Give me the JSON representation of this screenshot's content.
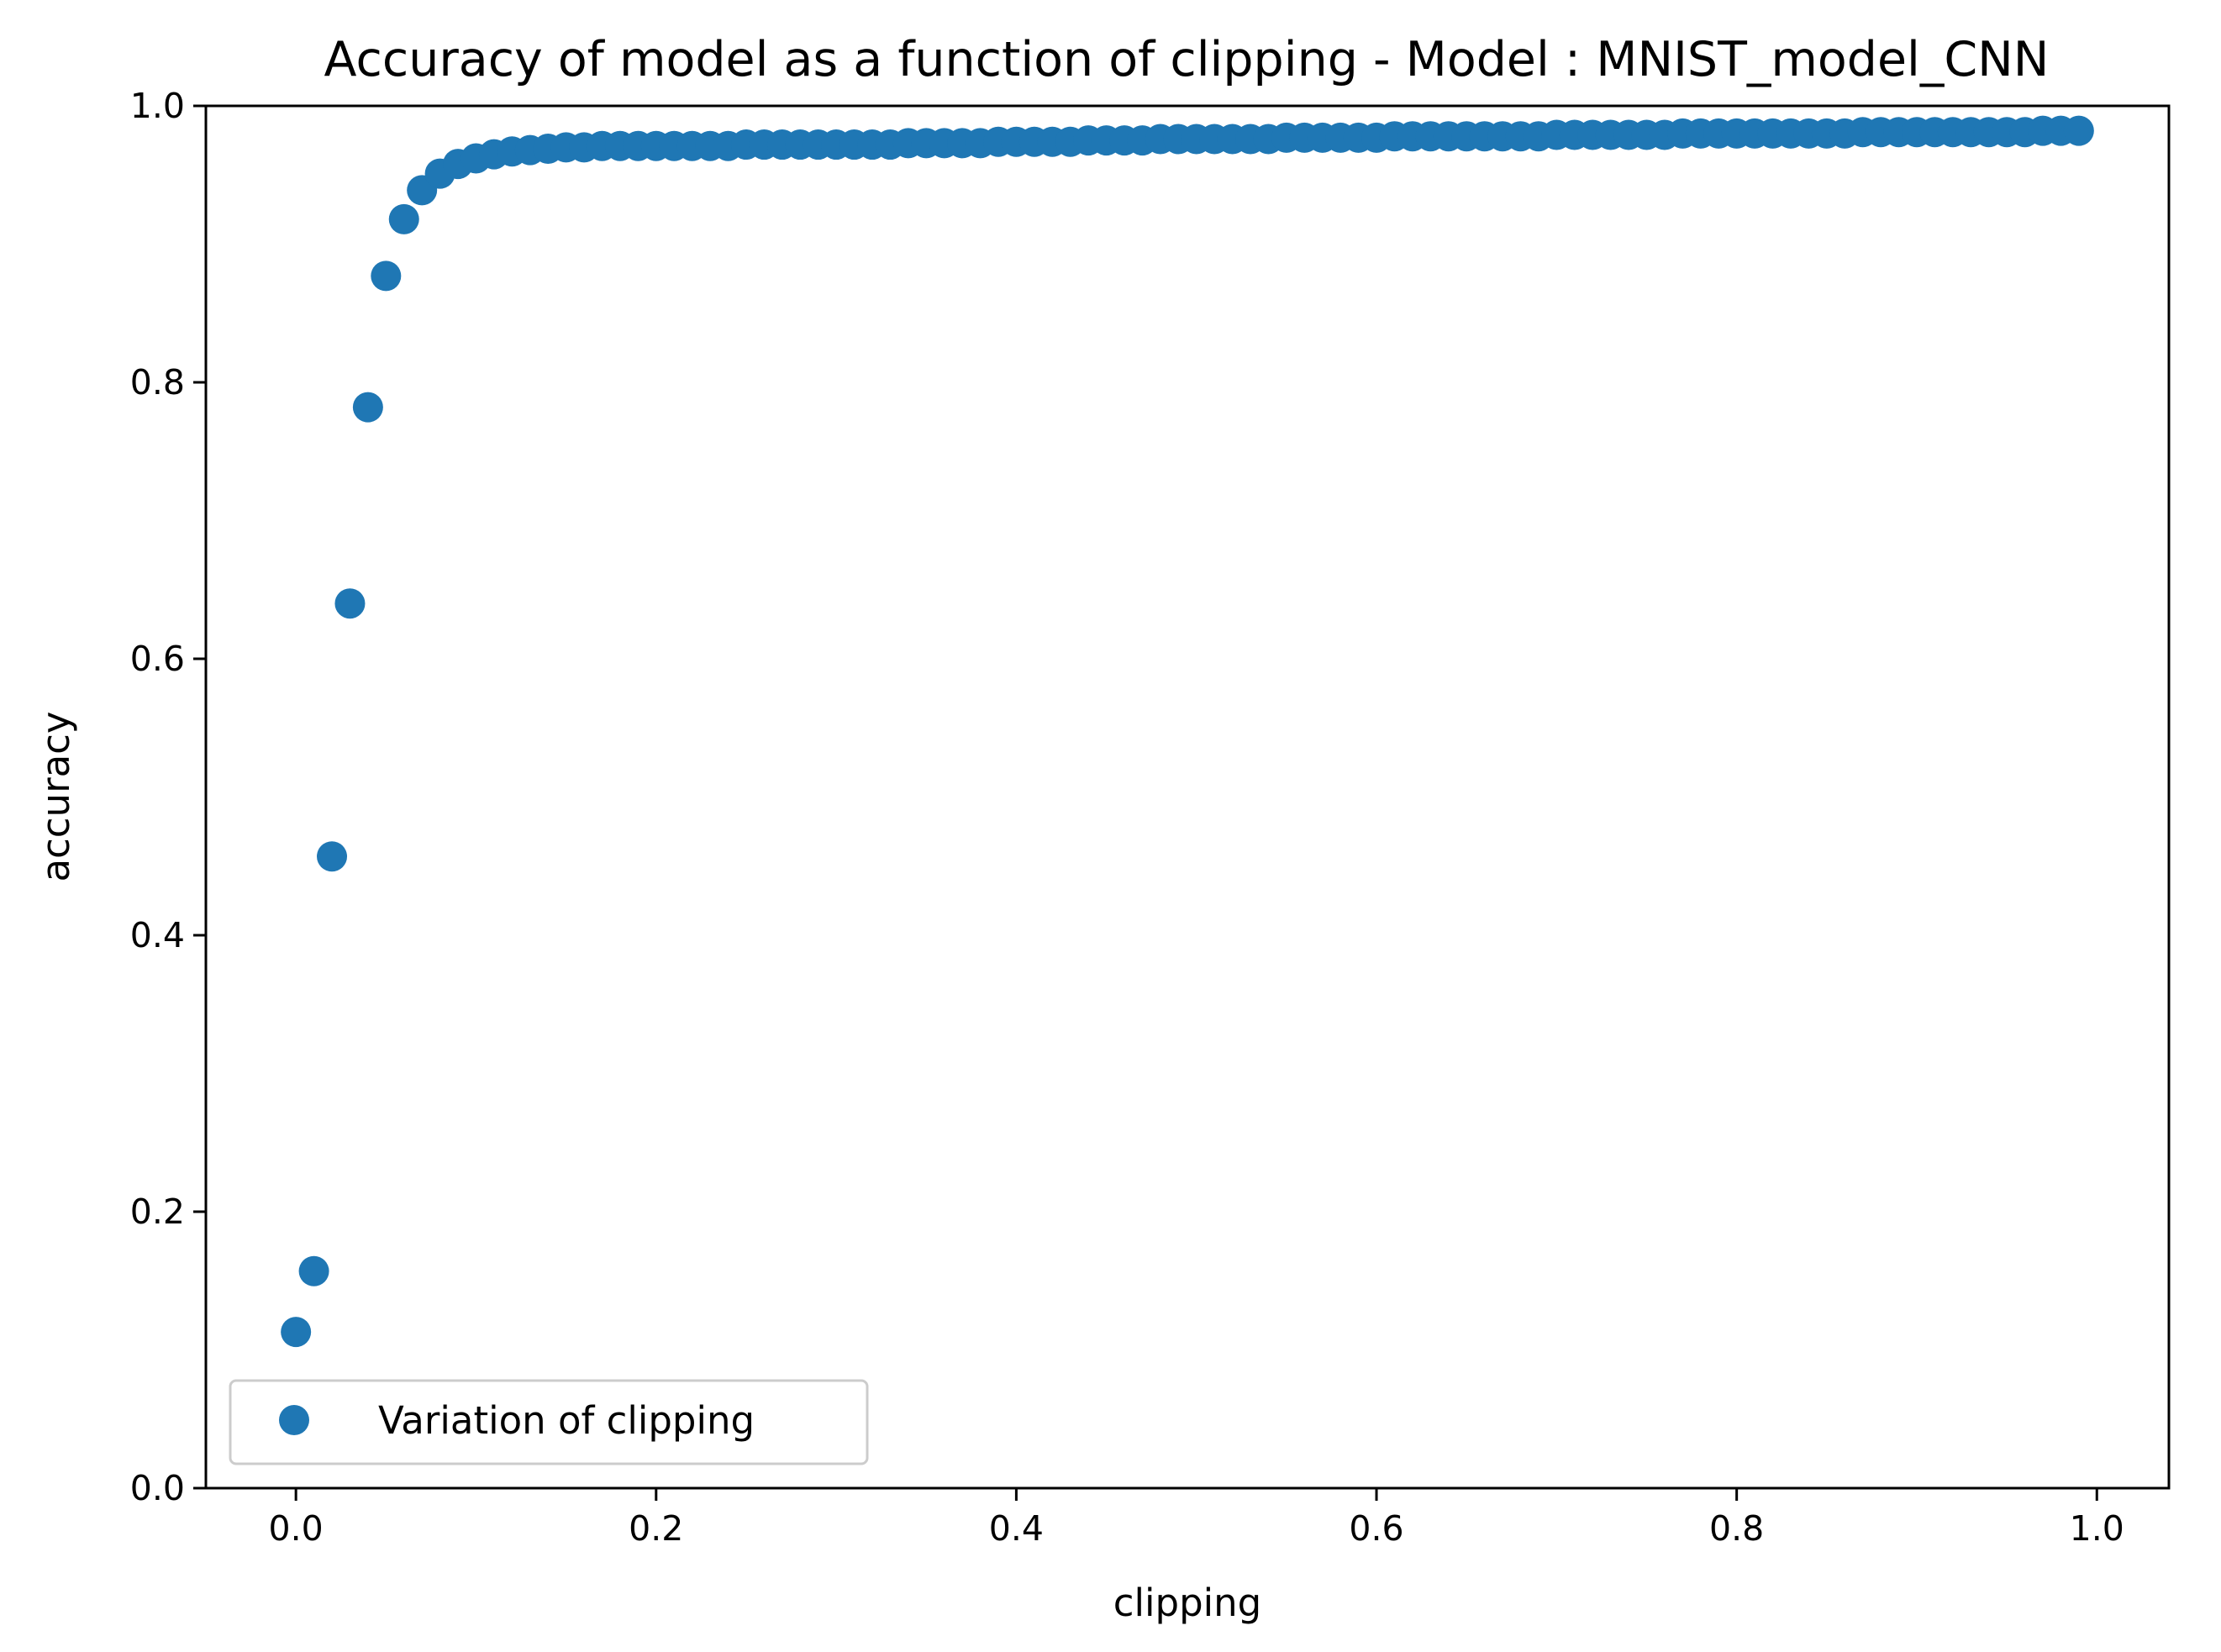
{
  "chart_data": {
    "type": "scatter",
    "title": "Accuracy of model as a function of clipping - Model : MNIST_model_CNN",
    "xlabel": "clipping",
    "ylabel": "accuracy",
    "xlim": [
      -0.05,
      1.04
    ],
    "ylim": [
      0.0,
      1.0
    ],
    "x_ticks": [
      0.0,
      0.2,
      0.4,
      0.6,
      0.8,
      1.0
    ],
    "x_tick_labels": [
      "0.0",
      "0.2",
      "0.4",
      "0.6",
      "0.8",
      "1.0"
    ],
    "y_ticks": [
      0.0,
      0.2,
      0.4,
      0.6,
      0.8,
      1.0
    ],
    "y_tick_labels": [
      "0.0",
      "0.2",
      "0.4",
      "0.6",
      "0.8",
      "1.0"
    ],
    "grid": false,
    "legend_position": "bottom-left",
    "series": [
      {
        "name": "Variation of clipping",
        "color": "#1f77b4",
        "marker": "circle",
        "x": [
          0.0,
          0.01,
          0.02,
          0.03,
          0.04,
          0.05,
          0.06,
          0.07,
          0.08,
          0.09,
          0.1,
          0.11,
          0.12,
          0.13,
          0.14,
          0.15,
          0.16,
          0.17,
          0.18,
          0.19,
          0.2,
          0.21,
          0.22,
          0.23,
          0.24,
          0.25,
          0.26,
          0.27,
          0.28,
          0.29,
          0.3,
          0.31,
          0.32,
          0.33,
          0.34,
          0.35,
          0.36,
          0.37,
          0.38,
          0.39,
          0.4,
          0.41,
          0.42,
          0.43,
          0.44,
          0.45,
          0.46,
          0.47,
          0.48,
          0.49,
          0.5,
          0.51,
          0.52,
          0.53,
          0.54,
          0.55,
          0.56,
          0.57,
          0.58,
          0.59,
          0.6,
          0.61,
          0.62,
          0.63,
          0.64,
          0.65,
          0.66,
          0.67,
          0.68,
          0.69,
          0.7,
          0.71,
          0.72,
          0.73,
          0.74,
          0.75,
          0.76,
          0.77,
          0.78,
          0.79,
          0.8,
          0.81,
          0.82,
          0.83,
          0.84,
          0.85,
          0.86,
          0.87,
          0.88,
          0.89,
          0.9,
          0.91,
          0.92,
          0.93,
          0.94,
          0.95,
          0.96,
          0.97,
          0.98,
          0.99
        ],
        "y": [
          0.113,
          0.157,
          0.457,
          0.64,
          0.782,
          0.877,
          0.918,
          0.939,
          0.951,
          0.958,
          0.962,
          0.965,
          0.967,
          0.968,
          0.969,
          0.97,
          0.97,
          0.971,
          0.971,
          0.971,
          0.971,
          0.971,
          0.971,
          0.971,
          0.971,
          0.972,
          0.972,
          0.972,
          0.972,
          0.972,
          0.972,
          0.972,
          0.972,
          0.972,
          0.973,
          0.973,
          0.973,
          0.973,
          0.973,
          0.974,
          0.974,
          0.974,
          0.974,
          0.974,
          0.975,
          0.975,
          0.975,
          0.975,
          0.976,
          0.976,
          0.976,
          0.976,
          0.976,
          0.976,
          0.976,
          0.977,
          0.977,
          0.977,
          0.977,
          0.977,
          0.977,
          0.978,
          0.978,
          0.978,
          0.978,
          0.978,
          0.978,
          0.978,
          0.978,
          0.978,
          0.979,
          0.979,
          0.979,
          0.979,
          0.979,
          0.979,
          0.979,
          0.98,
          0.98,
          0.98,
          0.98,
          0.98,
          0.98,
          0.98,
          0.98,
          0.98,
          0.98,
          0.981,
          0.981,
          0.981,
          0.981,
          0.981,
          0.981,
          0.981,
          0.981,
          0.981,
          0.981,
          0.982,
          0.982,
          0.982
        ]
      }
    ]
  }
}
